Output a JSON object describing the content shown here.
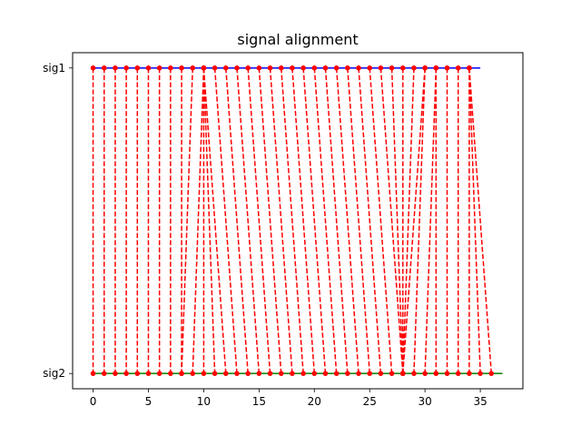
{
  "chart_data": {
    "type": "line",
    "title": "signal alignment",
    "xlabel": "",
    "ylabel": "",
    "xlim": [
      -1.85,
      38.85
    ],
    "ylim": [
      -0.05,
      1.05
    ],
    "x_ticks": [
      0,
      5,
      10,
      15,
      20,
      25,
      30,
      35
    ],
    "y_ticks": [
      {
        "value": 0,
        "label": "sig2"
      },
      {
        "value": 1,
        "label": "sig1"
      }
    ],
    "grid": false,
    "series": [
      {
        "x_start": 0,
        "x_end": 35,
        "y": 1,
        "color": "#0000ff"
      },
      {
        "x_start": 0,
        "x_end": 37,
        "y": 0,
        "color": "#008000"
      }
    ],
    "alignment_color": "#ff0000",
    "alignment": [
      [
        0,
        0
      ],
      [
        1,
        1
      ],
      [
        2,
        2
      ],
      [
        3,
        3
      ],
      [
        4,
        4
      ],
      [
        5,
        5
      ],
      [
        6,
        6
      ],
      [
        7,
        7
      ],
      [
        8,
        8
      ],
      [
        9,
        8
      ],
      [
        10,
        9
      ],
      [
        10,
        10
      ],
      [
        10,
        11
      ],
      [
        10,
        12
      ],
      [
        11,
        13
      ],
      [
        12,
        14
      ],
      [
        13,
        15
      ],
      [
        14,
        16
      ],
      [
        15,
        17
      ],
      [
        16,
        18
      ],
      [
        17,
        19
      ],
      [
        18,
        20
      ],
      [
        19,
        21
      ],
      [
        20,
        22
      ],
      [
        21,
        23
      ],
      [
        22,
        24
      ],
      [
        23,
        25
      ],
      [
        24,
        26
      ],
      [
        25,
        27
      ],
      [
        26,
        28
      ],
      [
        27,
        28
      ],
      [
        28,
        28
      ],
      [
        29,
        28
      ],
      [
        30,
        28
      ],
      [
        30,
        29
      ],
      [
        31,
        30
      ],
      [
        31,
        31
      ],
      [
        32,
        32
      ],
      [
        33,
        33
      ],
      [
        34,
        34
      ],
      [
        34,
        35
      ],
      [
        34,
        36
      ]
    ]
  }
}
